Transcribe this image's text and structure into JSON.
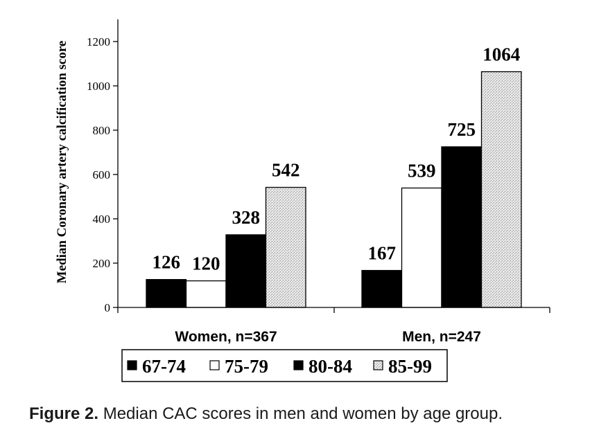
{
  "chart_data": {
    "type": "bar",
    "categories": [
      "Women, n=367",
      "Men, n=247"
    ],
    "series": [
      {
        "name": "67-74",
        "values": [
          126,
          167
        ],
        "fill": "#000000",
        "pattern": "solid"
      },
      {
        "name": "75-79",
        "values": [
          120,
          539
        ],
        "fill": "#ffffff",
        "pattern": "solid"
      },
      {
        "name": "80-84",
        "values": [
          328,
          725
        ],
        "fill": "#000000",
        "pattern": "solid"
      },
      {
        "name": "85-99",
        "values": [
          542,
          1064
        ],
        "fill": "#e4e4e4",
        "pattern": "stipple"
      }
    ],
    "data_labels": [
      [
        "126",
        "167"
      ],
      [
        "120",
        "539"
      ],
      [
        "328",
        "725"
      ],
      [
        "542",
        "1064"
      ]
    ],
    "ylabel": "Median Coronary artery calcification score",
    "xlabel": "",
    "ylim": [
      0,
      1300
    ],
    "yticks": [
      0,
      200,
      400,
      600,
      800,
      1000,
      1200
    ],
    "ytick_labels": [
      "0",
      "200",
      "400",
      "600",
      "800",
      "1000",
      "1200"
    ],
    "grid": false,
    "legend_position": "bottom",
    "legend_entries": [
      "67-74",
      "75-79",
      "80-84",
      "85-99"
    ]
  },
  "caption": {
    "label": "Figure 2.",
    "text": " Median CAC scores in men and women by age group."
  }
}
